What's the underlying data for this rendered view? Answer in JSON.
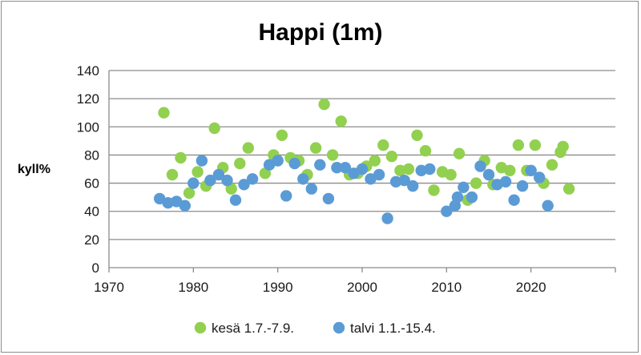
{
  "chart_data": {
    "type": "scatter",
    "title": "Happi (1m)",
    "xlabel": "",
    "ylabel": "kyll%",
    "xlim": [
      1970,
      2030
    ],
    "ylim": [
      0,
      140
    ],
    "x_ticks": [
      "1970",
      "1980",
      "1990",
      "2000",
      "2010",
      "2020"
    ],
    "y_ticks": [
      "0",
      "20",
      "40",
      "60",
      "80",
      "100",
      "120",
      "140"
    ],
    "grid": "horizontal",
    "legend_position": "bottom",
    "series": [
      {
        "name": "kesä 1.7.-7.9.",
        "color": "#92d050",
        "points": [
          [
            1976.5,
            110
          ],
          [
            1977.5,
            66
          ],
          [
            1978.5,
            78
          ],
          [
            1979.5,
            53
          ],
          [
            1980.5,
            68
          ],
          [
            1981.5,
            58
          ],
          [
            1982.5,
            99
          ],
          [
            1983.5,
            71
          ],
          [
            1984.5,
            56
          ],
          [
            1985.5,
            74
          ],
          [
            1986.5,
            85
          ],
          [
            1988.5,
            67
          ],
          [
            1989.5,
            80
          ],
          [
            1990.5,
            94
          ],
          [
            1991.5,
            78
          ],
          [
            1992.5,
            76
          ],
          [
            1993.5,
            66
          ],
          [
            1994.5,
            85
          ],
          [
            1995.5,
            116
          ],
          [
            1996.5,
            80
          ],
          [
            1997.5,
            104
          ],
          [
            1998.5,
            66
          ],
          [
            1999.5,
            67
          ],
          [
            2000.5,
            72
          ],
          [
            2001.5,
            76
          ],
          [
            2002.5,
            87
          ],
          [
            2003.5,
            79
          ],
          [
            2004.5,
            69
          ],
          [
            2005.5,
            70
          ],
          [
            2006.5,
            94
          ],
          [
            2007.5,
            83
          ],
          [
            2008.5,
            55
          ],
          [
            2009.5,
            68
          ],
          [
            2010.5,
            66
          ],
          [
            2011.5,
            81
          ],
          [
            2012.5,
            48
          ],
          [
            2013.5,
            60
          ],
          [
            2014.5,
            76
          ],
          [
            2015.5,
            59
          ],
          [
            2016.5,
            71
          ],
          [
            2017.5,
            69
          ],
          [
            2018.5,
            87
          ],
          [
            2019.5,
            69
          ],
          [
            2020.5,
            87
          ],
          [
            2021.5,
            60
          ],
          [
            2022.5,
            73
          ],
          [
            2023.5,
            82
          ],
          [
            2023.8,
            86
          ],
          [
            2024.5,
            56
          ]
        ]
      },
      {
        "name": "talvi 1.1.-15.4.",
        "color": "#5b9bd5",
        "points": [
          [
            1976,
            49
          ],
          [
            1977,
            46
          ],
          [
            1978,
            47
          ],
          [
            1979,
            44
          ],
          [
            1980,
            60
          ],
          [
            1981,
            76
          ],
          [
            1982,
            62
          ],
          [
            1983,
            66
          ],
          [
            1984,
            62
          ],
          [
            1985,
            48
          ],
          [
            1986,
            59
          ],
          [
            1987,
            63
          ],
          [
            1989,
            73
          ],
          [
            1990,
            76
          ],
          [
            1991,
            51
          ],
          [
            1992,
            74
          ],
          [
            1993,
            63
          ],
          [
            1994,
            56
          ],
          [
            1995,
            73
          ],
          [
            1996,
            49
          ],
          [
            1997,
            71
          ],
          [
            1998,
            71
          ],
          [
            1999,
            67
          ],
          [
            2000,
            70
          ],
          [
            2001,
            63
          ],
          [
            2002,
            66
          ],
          [
            2003,
            35
          ],
          [
            2004,
            61
          ],
          [
            2005,
            62
          ],
          [
            2006,
            58
          ],
          [
            2007,
            69
          ],
          [
            2008,
            70
          ],
          [
            2010,
            40
          ],
          [
            2011,
            44
          ],
          [
            2011.3,
            50
          ],
          [
            2012,
            57
          ],
          [
            2013,
            50
          ],
          [
            2014,
            72
          ],
          [
            2015,
            66
          ],
          [
            2016,
            59
          ],
          [
            2017,
            61
          ],
          [
            2018,
            48
          ],
          [
            2019,
            58
          ],
          [
            2020,
            69
          ],
          [
            2021,
            64
          ],
          [
            2022,
            44
          ]
        ]
      }
    ]
  }
}
